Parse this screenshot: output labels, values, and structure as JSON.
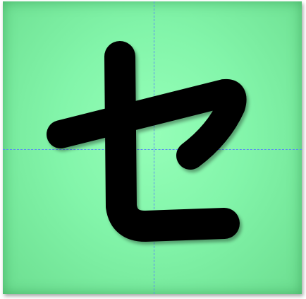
{
  "card": {
    "character": "セ",
    "background_color": "#86f2a6",
    "guide_color": "#5b8ff0",
    "glyph_color": "#000000"
  }
}
